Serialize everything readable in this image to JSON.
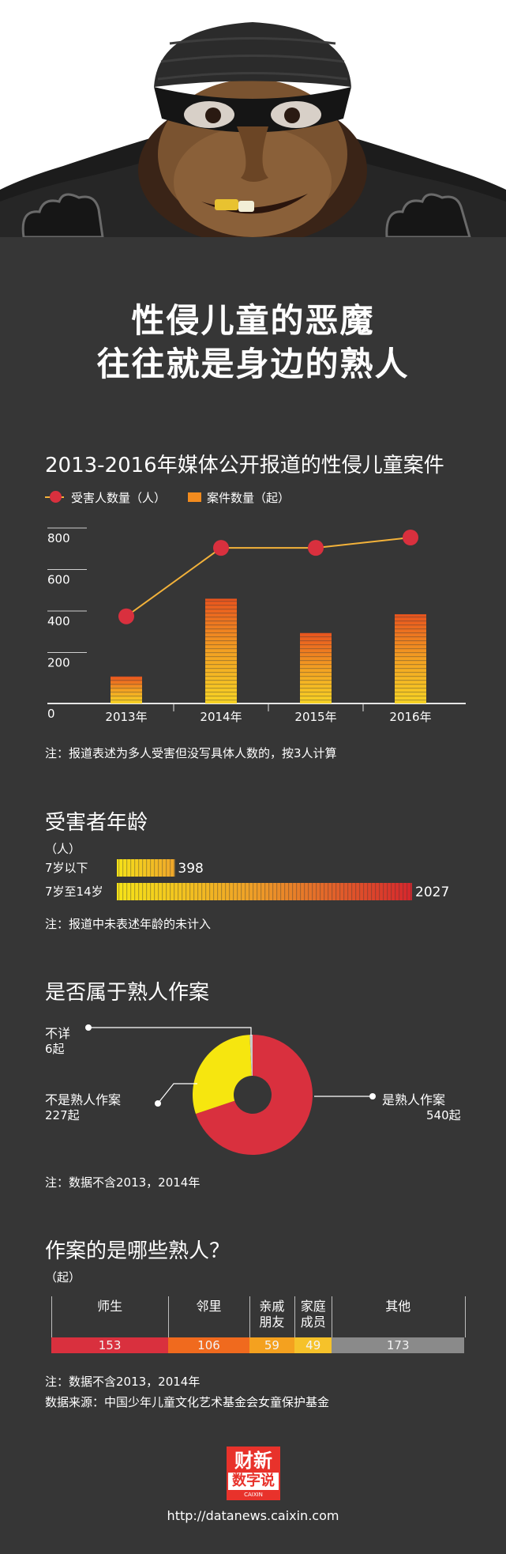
{
  "header": {
    "title_line1": "性侵儿童的恶魔",
    "title_line2": "往往就是身边的熟人"
  },
  "colors": {
    "background": "#363636",
    "red": "#d9303e",
    "orange": "#f28b1e",
    "yellow": "#f6e60f",
    "gray": "#8a8a8a",
    "line": "#f3b23a"
  },
  "chart1": {
    "chart_data": {
      "type": "bar",
      "title": "2013-2016年媒体公开报道的性侵儿童案件",
      "categories": [
        "2013年",
        "2014年",
        "2015年",
        "2016年"
      ],
      "series": [
        {
          "name": "受害人数量（人）",
          "type": "line",
          "values": [
            420,
            750,
            750,
            800
          ]
        },
        {
          "name": "案件数量（起）",
          "type": "bar",
          "values": [
            130,
            505,
            340,
            430
          ]
        }
      ],
      "yticks": [
        "0",
        "200",
        "400",
        "600",
        "800"
      ],
      "ylim": [
        0,
        800
      ],
      "legend": "top-left",
      "note": "注：报道表述为多人受害但没写具体人数的，按3人计算"
    }
  },
  "chart2": {
    "chart_data": {
      "type": "bar",
      "orientation": "horizontal",
      "title": "受害者年龄",
      "unit": "（人）",
      "categories": [
        "7岁以下",
        "7岁至14岁"
      ],
      "values": [
        398,
        2027
      ],
      "data_labels": [
        "398",
        "2027"
      ],
      "note": "注：报道中未表述年龄的未计入"
    }
  },
  "chart3": {
    "chart_data": {
      "type": "pie",
      "title": "是否属于熟人作案",
      "labels": [
        "是熟人作案",
        "不是熟人作案",
        "不详"
      ],
      "values": [
        540,
        227,
        6
      ],
      "value_labels": [
        "540起",
        "227起",
        "6起"
      ],
      "note": "注：数据不含2013，2014年"
    }
  },
  "chart4": {
    "chart_data": {
      "type": "bar",
      "orientation": "stacked-horizontal",
      "title": "作案的是哪些熟人？",
      "unit": "（起）",
      "categories": [
        "师生",
        "邻里",
        "亲戚朋友",
        "家庭成员",
        "其他"
      ],
      "category_lines": [
        [
          "师生"
        ],
        [
          "邻里"
        ],
        [
          "亲戚",
          "朋友"
        ],
        [
          "家庭",
          "成员"
        ],
        [
          "其他"
        ]
      ],
      "values": [
        153,
        106,
        59,
        49,
        173
      ],
      "data_labels": [
        "153",
        "106",
        "59",
        "49",
        "173"
      ],
      "note1": "注：数据不含2013，2014年",
      "note2": "数据来源：中国少年儿童文化艺术基金会女童保护基金"
    }
  },
  "footer": {
    "logo_line1": "财新",
    "logo_line2": "数字说",
    "logo_small": "CAIXIN",
    "url": "http://datanews.caixin.com"
  }
}
